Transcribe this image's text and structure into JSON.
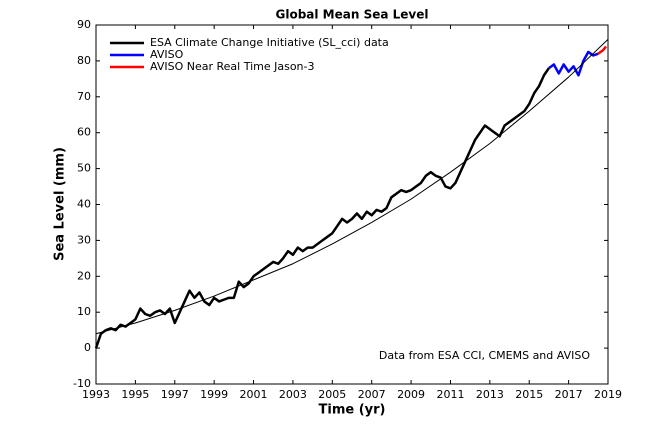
{
  "chart_data": {
    "type": "line",
    "title": "Global Mean Sea Level",
    "x_label": "Time (yr)",
    "y_label": "Sea Level (mm)",
    "annotation": "Data from ESA CCI, CMEMS and AVISO",
    "xlim": [
      1993,
      2019
    ],
    "xticks": [
      1993,
      1995,
      1997,
      1999,
      2001,
      2003,
      2005,
      2007,
      2009,
      2011,
      2013,
      2015,
      2017,
      2019
    ],
    "ylim": [
      -10,
      90
    ],
    "yticks": [
      -10,
      0,
      10,
      20,
      30,
      40,
      50,
      60,
      70,
      80,
      90
    ],
    "legend": "upper left",
    "series": [
      {
        "name": "ESA Climate Change Initiative (SL_cci) data",
        "color": "#000000",
        "line_width": 2.5,
        "x": [
          1993,
          1993.25,
          1993.5,
          1993.75,
          1994,
          1994.25,
          1994.5,
          1994.75,
          1995,
          1995.25,
          1995.5,
          1995.75,
          1996,
          1996.25,
          1996.5,
          1996.75,
          1997,
          1997.25,
          1997.5,
          1997.75,
          1998,
          1998.25,
          1998.5,
          1998.75,
          1999,
          1999.25,
          1999.5,
          1999.75,
          2000,
          2000.25,
          2000.5,
          2000.75,
          2001,
          2001.25,
          2001.5,
          2001.75,
          2002,
          2002.25,
          2002.5,
          2002.75,
          2003,
          2003.25,
          2003.5,
          2003.75,
          2004,
          2004.25,
          2004.5,
          2004.75,
          2005,
          2005.25,
          2005.5,
          2005.75,
          2006,
          2006.25,
          2006.5,
          2006.75,
          2007,
          2007.25,
          2007.5,
          2007.75,
          2008,
          2008.25,
          2008.5,
          2008.75,
          2009,
          2009.25,
          2009.5,
          2009.75,
          2010,
          2010.25,
          2010.5,
          2010.75,
          2011,
          2011.25,
          2011.5,
          2011.75,
          2012,
          2012.25,
          2012.5,
          2012.75,
          2013,
          2013.25,
          2013.5,
          2013.75,
          2014,
          2014.25,
          2014.5,
          2014.75,
          2015,
          2015.25,
          2015.5,
          2015.75,
          2016
        ],
        "values": [
          0,
          4,
          5,
          5.5,
          5,
          6.5,
          6,
          7,
          8,
          11,
          9.5,
          9,
          10,
          10.5,
          9.5,
          11,
          7,
          10,
          13,
          16,
          14,
          15.5,
          13,
          12,
          14,
          13,
          13.5,
          14,
          14,
          18.5,
          17,
          18,
          20,
          21,
          22,
          23,
          24,
          23.5,
          25,
          27,
          26,
          28,
          27,
          28,
          28,
          29,
          30,
          31,
          32,
          34,
          36,
          35,
          36,
          37.5,
          36,
          38,
          37,
          38.5,
          38,
          39,
          42,
          43,
          44,
          43.5,
          44,
          45,
          46,
          48,
          49,
          48,
          47.5,
          45,
          44.5,
          46,
          49,
          52,
          55,
          58,
          60,
          62,
          61,
          60,
          59,
          62,
          63,
          64,
          65,
          66,
          68,
          71,
          73,
          76,
          78
        ]
      },
      {
        "name": "AVISO",
        "color": "#0000ff",
        "line_width": 2.5,
        "x": [
          2016,
          2016.25,
          2016.5,
          2016.75,
          2017,
          2017.25,
          2017.5,
          2017.75,
          2018,
          2018.25,
          2018.5
        ],
        "values": [
          78,
          79,
          76.5,
          79,
          77,
          78.5,
          76,
          80,
          82.5,
          81.5,
          82
        ]
      },
      {
        "name": "AVISO Near Real Time Jason-3",
        "color": "#ff0000",
        "line_width": 2.5,
        "x": [
          2018.5,
          2018.75,
          2018.9
        ],
        "values": [
          82,
          83,
          84
        ]
      },
      {
        "color": "#000000",
        "line_width": 1,
        "x": [
          1993,
          1995,
          1997,
          1999,
          2001,
          2003,
          2005,
          2007,
          2009,
          2011,
          2013,
          2015,
          2017,
          2019
        ],
        "values": [
          4,
          7,
          10.5,
          14.5,
          19,
          23.5,
          29,
          35,
          41.5,
          49,
          57,
          66,
          75.5,
          86
        ]
      }
    ]
  }
}
